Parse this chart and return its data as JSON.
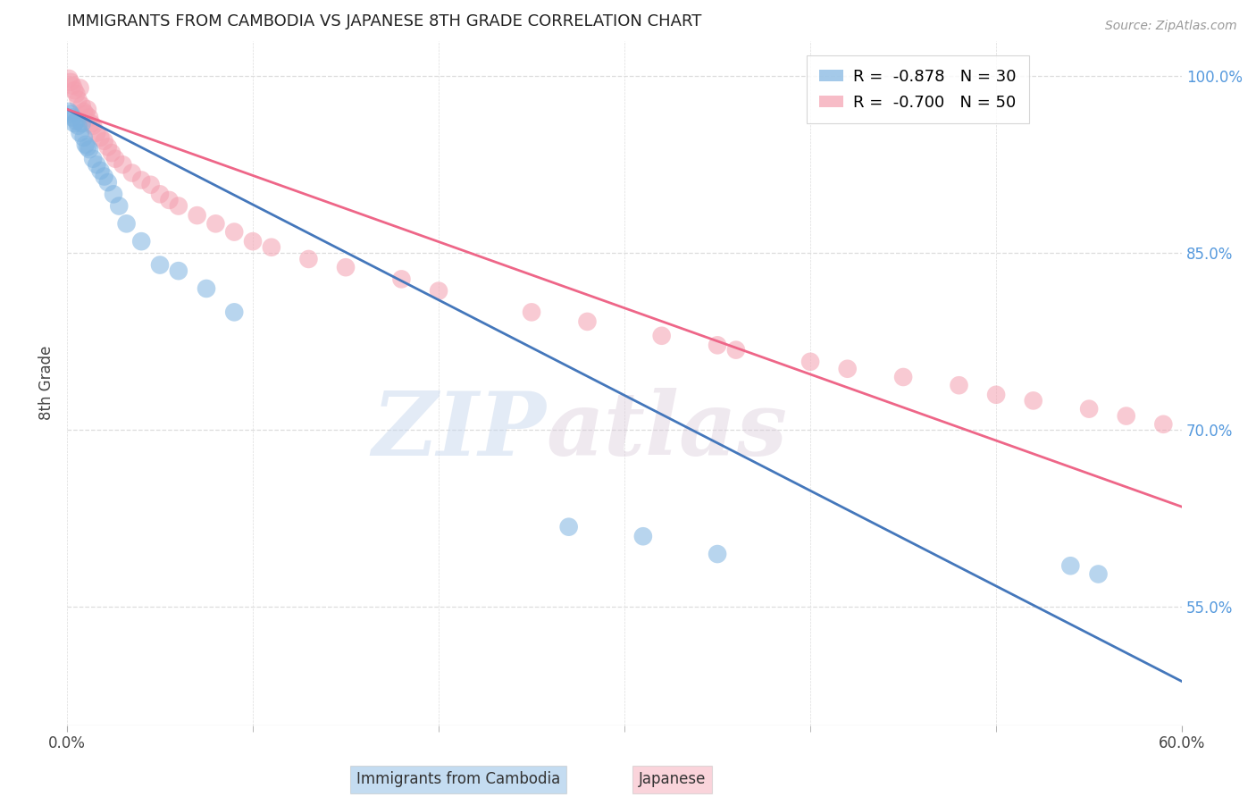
{
  "title": "IMMIGRANTS FROM CAMBODIA VS JAPANESE 8TH GRADE CORRELATION CHART",
  "source": "Source: ZipAtlas.com",
  "ylabel": "8th Grade",
  "x_min": 0.0,
  "x_max": 0.6,
  "y_min": 0.45,
  "y_max": 1.03,
  "right_yticks": [
    1.0,
    0.85,
    0.7,
    0.55
  ],
  "right_yticklabels": [
    "100.0%",
    "85.0%",
    "70.0%",
    "55.0%"
  ],
  "blue_color": "#7EB3E0",
  "pink_color": "#F4A0B0",
  "blue_line_color": "#4477BB",
  "pink_line_color": "#EE6688",
  "legend_blue_label_r": "R =  -0.878",
  "legend_blue_label_n": "N = 30",
  "legend_pink_label_r": "R =  -0.700",
  "legend_pink_label_n": "N = 50",
  "blue_line_x0": 0.0,
  "blue_line_y0": 0.972,
  "blue_line_x1": 0.6,
  "blue_line_y1": 0.487,
  "pink_line_x0": 0.0,
  "pink_line_y0": 0.972,
  "pink_line_x1": 0.6,
  "pink_line_y1": 0.635,
  "blue_scatter_x": [
    0.001,
    0.002,
    0.003,
    0.004,
    0.005,
    0.006,
    0.007,
    0.008,
    0.009,
    0.01,
    0.011,
    0.012,
    0.014,
    0.016,
    0.018,
    0.02,
    0.022,
    0.025,
    0.028,
    0.032,
    0.04,
    0.05,
    0.06,
    0.075,
    0.09,
    0.27,
    0.31,
    0.35,
    0.54,
    0.555
  ],
  "blue_scatter_y": [
    0.97,
    0.968,
    0.965,
    0.96,
    0.962,
    0.958,
    0.952,
    0.96,
    0.948,
    0.942,
    0.94,
    0.938,
    0.93,
    0.925,
    0.92,
    0.915,
    0.91,
    0.9,
    0.89,
    0.875,
    0.86,
    0.84,
    0.835,
    0.82,
    0.8,
    0.618,
    0.61,
    0.595,
    0.585,
    0.578
  ],
  "pink_scatter_x": [
    0.001,
    0.002,
    0.003,
    0.004,
    0.005,
    0.006,
    0.007,
    0.008,
    0.009,
    0.01,
    0.011,
    0.012,
    0.013,
    0.014,
    0.016,
    0.018,
    0.02,
    0.022,
    0.024,
    0.026,
    0.03,
    0.035,
    0.04,
    0.045,
    0.05,
    0.055,
    0.06,
    0.07,
    0.08,
    0.09,
    0.1,
    0.11,
    0.13,
    0.15,
    0.18,
    0.2,
    0.25,
    0.28,
    0.32,
    0.35,
    0.36,
    0.4,
    0.42,
    0.45,
    0.48,
    0.5,
    0.52,
    0.55,
    0.57,
    0.59
  ],
  "pink_scatter_y": [
    0.998,
    0.995,
    0.992,
    0.988,
    0.985,
    0.98,
    0.99,
    0.975,
    0.97,
    0.968,
    0.972,
    0.965,
    0.96,
    0.958,
    0.952,
    0.948,
    0.945,
    0.94,
    0.935,
    0.93,
    0.925,
    0.918,
    0.912,
    0.908,
    0.9,
    0.895,
    0.89,
    0.882,
    0.875,
    0.868,
    0.86,
    0.855,
    0.845,
    0.838,
    0.828,
    0.818,
    0.8,
    0.792,
    0.78,
    0.772,
    0.768,
    0.758,
    0.752,
    0.745,
    0.738,
    0.73,
    0.725,
    0.718,
    0.712,
    0.705
  ],
  "watermark_zip": "ZIP",
  "watermark_atlas": "atlas",
  "background_color": "#FFFFFF",
  "grid_color": "#DDDDDD",
  "bottom_legend_blue": "Immigrants from Cambodia",
  "bottom_legend_pink": "Japanese"
}
